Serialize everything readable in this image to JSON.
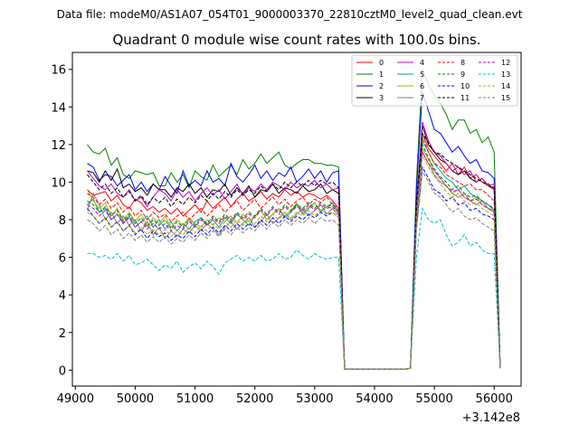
{
  "chart_data": {
    "type": "line",
    "suptitle": "Data file: modeM0/AS1A07_054T01_9000003370_22810cztM0_level2_quad_clean.evt",
    "title": "Quadrant 0 module wise count rates with 100.0s bins.",
    "xlabel": "",
    "ylabel": "",
    "x_offset_label": "+3.142e8",
    "xlim": [
      48950,
      56450
    ],
    "ylim": [
      -0.85,
      16.9
    ],
    "x_ticks": [
      49000,
      50000,
      51000,
      52000,
      53000,
      54000,
      55000,
      56000
    ],
    "y_ticks": [
      0,
      2,
      4,
      6,
      8,
      10,
      12,
      14,
      16
    ],
    "x_segments": [
      {
        "start": 49200,
        "end": 53500,
        "step": 100
      },
      {
        "start": 54600,
        "end": 56100,
        "step": 100
      }
    ],
    "series": [
      {
        "name": "0",
        "color": "#ff0000",
        "dash": "solid",
        "seg1": [
          9.6,
          9.3,
          9.4,
          9.5,
          9.0,
          9.3,
          8.8,
          8.6,
          9.1,
          8.9,
          8.5,
          8.7,
          8.4,
          8.6,
          8.3,
          8.6,
          8.2,
          8.5,
          8.8,
          8.4,
          9.0,
          8.6,
          8.9,
          9.2,
          8.7,
          9.1,
          9.4,
          9.0,
          9.2,
          9.5,
          9.1,
          9.4,
          9.2,
          9.6,
          9.3,
          9.5,
          9.2,
          9.4,
          9.3,
          9.1,
          9.3,
          9.0,
          8.6,
          0.05
        ],
        "seg2": [
          0.1,
          8.2,
          12.6,
          11.8,
          11.4,
          11.0,
          10.6,
          11.0,
          10.4,
          10.8,
          10.2,
          10.4,
          10.0,
          9.8,
          9.6,
          0.1
        ]
      },
      {
        "name": "1",
        "color": "#008000",
        "dash": "solid",
        "seg1": [
          12.0,
          11.6,
          11.5,
          11.8,
          10.9,
          11.3,
          10.4,
          10.2,
          10.6,
          10.5,
          10.4,
          10.5,
          9.8,
          9.8,
          10.5,
          10.0,
          10.4,
          9.7,
          10.6,
          10.3,
          10.1,
          10.9,
          10.3,
          10.6,
          10.9,
          10.4,
          11.2,
          10.7,
          11.0,
          11.5,
          11.0,
          11.3,
          11.6,
          10.9,
          10.7,
          11.0,
          11.2,
          11.2,
          11.0,
          11.0,
          10.9,
          10.9,
          10.8,
          0.05
        ],
        "seg2": [
          0.1,
          10.0,
          16.0,
          15.2,
          14.6,
          14.2,
          13.6,
          12.8,
          13.3,
          13.3,
          12.6,
          12.8,
          12.1,
          12.4,
          11.6,
          0.2
        ]
      },
      {
        "name": "2",
        "color": "#0000ff",
        "dash": "solid",
        "seg1": [
          11.0,
          10.8,
          10.1,
          10.4,
          10.3,
          9.8,
          10.1,
          10.4,
          9.6,
          10.0,
          9.5,
          9.9,
          9.6,
          10.3,
          9.8,
          9.4,
          10.6,
          9.8,
          10.1,
          9.8,
          10.6,
          10.0,
          10.2,
          9.8,
          11.0,
          10.3,
          10.0,
          10.4,
          10.9,
          10.2,
          10.6,
          10.1,
          10.5,
          10.3,
          10.8,
          10.0,
          10.3,
          10.7,
          10.2,
          10.6,
          10.0,
          10.5,
          10.6,
          0.05
        ],
        "seg2": [
          0.1,
          9.6,
          14.8,
          13.8,
          12.8,
          12.6,
          12.1,
          11.6,
          11.9,
          11.4,
          11.0,
          11.2,
          10.6,
          10.5,
          10.2,
          0.1
        ]
      },
      {
        "name": "3",
        "color": "#000000",
        "dash": "solid",
        "seg1": [
          10.6,
          10.5,
          10.0,
          10.6,
          10.1,
          10.7,
          9.7,
          9.9,
          9.5,
          9.7,
          9.3,
          9.9,
          9.6,
          9.6,
          9.2,
          9.7,
          9.5,
          9.9,
          9.4,
          9.7,
          9.2,
          9.6,
          9.5,
          9.9,
          9.3,
          9.7,
          9.4,
          9.8,
          9.2,
          9.6,
          9.5,
          9.9,
          9.4,
          9.7,
          9.6,
          9.4,
          9.8,
          9.5,
          9.6,
          9.9,
          9.4,
          9.6,
          9.4,
          0.05
        ],
        "seg2": [
          0.1,
          8.5,
          13.0,
          12.0,
          11.6,
          11.2,
          11.0,
          10.6,
          10.4,
          10.6,
          10.2,
          10.0,
          10.2,
          9.8,
          9.7,
          0.1
        ]
      },
      {
        "name": "4",
        "color": "#c000c0",
        "dash": "solid",
        "seg1": [
          10.6,
          10.2,
          9.8,
          9.6,
          9.9,
          9.4,
          9.2,
          9.6,
          9.0,
          9.2,
          8.7,
          9.2,
          9.6,
          9.4,
          9.0,
          9.6,
          9.2,
          9.5,
          9.0,
          9.4,
          9.7,
          9.3,
          9.6,
          9.1,
          9.5,
          9.9,
          9.3,
          9.7,
          9.5,
          9.9,
          9.6,
          10.0,
          9.8,
          9.6,
          10.0,
          9.7,
          9.9,
          9.8,
          10.1,
          9.7,
          9.9,
          9.6,
          9.7,
          0.05
        ],
        "seg2": [
          0.1,
          8.8,
          13.2,
          12.2,
          11.6,
          11.4,
          11.0,
          10.6,
          10.8,
          10.4,
          10.6,
          10.0,
          10.2,
          9.8,
          9.9,
          0.1
        ]
      },
      {
        "name": "5",
        "color": "#00a0a0",
        "dash": "solid",
        "seg1": [
          8.8,
          9.1,
          8.4,
          8.6,
          8.0,
          8.3,
          7.8,
          8.2,
          7.6,
          7.9,
          8.2,
          7.6,
          8.0,
          7.5,
          7.9,
          7.4,
          7.8,
          7.5,
          7.9,
          8.1,
          7.7,
          8.0,
          7.6,
          8.1,
          7.8,
          8.3,
          8.0,
          7.7,
          8.2,
          8.5,
          8.0,
          8.3,
          8.6,
          8.1,
          8.4,
          8.8,
          8.3,
          8.6,
          8.9,
          8.4,
          8.7,
          8.9,
          8.3,
          0.05
        ],
        "seg2": [
          0.1,
          8.4,
          12.2,
          11.6,
          11.0,
          10.6,
          10.2,
          10.0,
          9.6,
          9.8,
          9.4,
          9.2,
          9.0,
          8.8,
          8.5,
          0.1
        ]
      },
      {
        "name": "6",
        "color": "#b0b000",
        "dash": "solid",
        "seg1": [
          9.6,
          9.0,
          8.6,
          8.9,
          8.2,
          8.6,
          8.0,
          8.4,
          7.9,
          8.3,
          7.7,
          8.1,
          7.8,
          8.2,
          7.6,
          8.0,
          7.7,
          8.1,
          7.8,
          7.6,
          8.0,
          7.7,
          8.1,
          7.9,
          8.2,
          7.8,
          8.3,
          7.9,
          8.2,
          8.5,
          8.0,
          8.3,
          8.6,
          8.2,
          8.5,
          8.9,
          8.4,
          8.7,
          8.9,
          8.5,
          8.7,
          8.6,
          8.4,
          0.05
        ],
        "seg2": [
          0.1,
          8.2,
          11.8,
          11.2,
          10.6,
          10.2,
          9.8,
          9.4,
          9.6,
          9.2,
          9.0,
          9.2,
          8.8,
          8.6,
          8.5,
          0.1
        ]
      },
      {
        "name": "7",
        "color": "#808080",
        "dash": "solid",
        "seg1": [
          8.5,
          9.4,
          8.8,
          8.0,
          8.4,
          7.8,
          8.2,
          7.7,
          8.0,
          7.4,
          7.9,
          7.2,
          7.6,
          7.0,
          7.4,
          7.1,
          7.5,
          7.3,
          7.7,
          7.4,
          7.8,
          7.5,
          7.2,
          7.6,
          7.9,
          7.5,
          7.8,
          8.1,
          7.6,
          7.9,
          8.3,
          7.8,
          8.1,
          8.4,
          8.0,
          8.3,
          8.6,
          8.2,
          8.5,
          8.8,
          8.3,
          8.6,
          8.2,
          0.05
        ],
        "seg2": [
          0.1,
          8.0,
          11.6,
          11.0,
          10.4,
          10.0,
          9.8,
          9.4,
          9.2,
          9.4,
          9.0,
          8.8,
          9.0,
          8.6,
          8.4,
          0.1
        ]
      },
      {
        "name": "8",
        "color": "#ff0000",
        "dash": "dashed",
        "seg1": [
          9.4,
          9.2,
          8.8,
          9.1,
          8.6,
          8.9,
          8.4,
          8.7,
          8.2,
          8.5,
          8.0,
          8.4,
          8.1,
          8.3,
          7.9,
          8.2,
          8.4,
          8.0,
          8.3,
          8.6,
          8.2,
          8.5,
          8.8,
          8.4,
          8.7,
          9.0,
          8.5,
          8.8,
          9.1,
          8.6,
          8.9,
          9.2,
          8.8,
          9.1,
          8.7,
          9.0,
          9.2,
          8.8,
          9.1,
          8.9,
          9.2,
          8.8,
          8.6,
          0.05
        ],
        "seg2": [
          0.1,
          8.3,
          12.4,
          11.6,
          11.0,
          10.8,
          10.4,
          10.2,
          10.0,
          9.8,
          9.9,
          9.6,
          9.6,
          9.3,
          9.0,
          0.1
        ]
      },
      {
        "name": "9",
        "color": "#008000",
        "dash": "dashed",
        "seg1": [
          9.0,
          8.8,
          8.4,
          8.7,
          8.2,
          8.5,
          7.9,
          8.3,
          7.8,
          8.1,
          7.6,
          8.0,
          7.7,
          8.0,
          7.5,
          7.9,
          7.6,
          8.0,
          7.7,
          8.1,
          7.8,
          8.2,
          7.9,
          8.3,
          8.0,
          8.4,
          8.1,
          8.4,
          8.2,
          8.6,
          8.3,
          8.7,
          8.4,
          8.8,
          8.5,
          8.8,
          8.6,
          8.9,
          8.6,
          8.9,
          8.7,
          8.8,
          8.5,
          0.05
        ],
        "seg2": [
          0.1,
          8.1,
          12.0,
          11.3,
          10.7,
          10.3,
          10.0,
          9.6,
          9.8,
          9.4,
          9.2,
          9.3,
          9.0,
          8.8,
          8.6,
          0.1
        ]
      },
      {
        "name": "10",
        "color": "#0000ff",
        "dash": "dashed",
        "seg1": [
          8.6,
          8.2,
          7.8,
          8.1,
          7.6,
          7.9,
          7.4,
          7.7,
          7.2,
          7.5,
          7.0,
          7.4,
          7.1,
          7.3,
          6.9,
          7.2,
          7.0,
          7.4,
          7.1,
          7.5,
          7.2,
          7.6,
          7.3,
          7.7,
          7.4,
          7.8,
          7.5,
          7.8,
          7.6,
          8.0,
          7.7,
          8.1,
          7.8,
          8.2,
          7.9,
          8.2,
          8.0,
          8.3,
          8.1,
          8.4,
          8.2,
          8.4,
          8.1,
          0.05
        ],
        "seg2": [
          0.1,
          7.6,
          10.8,
          10.2,
          9.6,
          9.4,
          9.0,
          9.2,
          8.8,
          8.9,
          8.5,
          8.6,
          8.3,
          8.2,
          8.0,
          0.1
        ]
      },
      {
        "name": "11",
        "color": "#000000",
        "dash": "dashed",
        "seg1": [
          10.4,
          10.0,
          9.6,
          9.9,
          9.4,
          9.7,
          9.2,
          9.5,
          9.0,
          9.3,
          8.8,
          9.2,
          8.9,
          9.2,
          8.7,
          9.1,
          8.8,
          9.2,
          8.9,
          9.3,
          9.0,
          9.4,
          9.1,
          9.5,
          9.2,
          9.6,
          9.3,
          9.6,
          9.4,
          9.8,
          9.5,
          9.9,
          9.6,
          10.0,
          9.7,
          10.0,
          9.8,
          10.1,
          9.8,
          10.1,
          9.9,
          10.0,
          9.7,
          0.05
        ],
        "seg2": [
          0.1,
          8.9,
          12.6,
          12.1,
          11.6,
          11.5,
          11.2,
          11.0,
          10.8,
          10.6,
          10.4,
          10.2,
          10.0,
          9.9,
          9.7,
          0.1
        ]
      },
      {
        "name": "12",
        "color": "#c000c0",
        "dash": "dashed",
        "seg1": [
          8.8,
          8.6,
          8.2,
          8.5,
          8.0,
          8.3,
          7.8,
          8.1,
          7.6,
          7.9,
          7.5,
          7.8,
          7.5,
          7.8,
          7.4,
          7.7,
          7.5,
          7.9,
          7.6,
          8.0,
          7.7,
          8.1,
          7.8,
          8.2,
          7.9,
          8.3,
          8.0,
          8.3,
          8.1,
          8.5,
          8.2,
          8.6,
          8.3,
          8.7,
          8.4,
          8.7,
          8.5,
          8.8,
          8.5,
          8.8,
          8.6,
          8.7,
          8.4,
          0.05
        ],
        "seg2": [
          0.1,
          8.0,
          11.6,
          11.0,
          10.6,
          10.2,
          9.8,
          9.5,
          9.6,
          9.2,
          9.0,
          9.1,
          8.8,
          8.6,
          8.4,
          0.1
        ]
      },
      {
        "name": "13",
        "color": "#00c0c0",
        "dash": "dashed",
        "seg1": [
          6.2,
          6.2,
          6.0,
          6.1,
          5.9,
          6.2,
          5.8,
          6.1,
          5.6,
          5.7,
          5.9,
          5.6,
          5.3,
          5.6,
          5.4,
          5.8,
          5.2,
          5.5,
          5.7,
          5.4,
          5.8,
          5.5,
          5.1,
          5.7,
          5.9,
          6.1,
          5.8,
          6.0,
          5.8,
          6.1,
          5.8,
          5.9,
          6.2,
          5.9,
          6.0,
          6.4,
          6.1,
          5.9,
          6.2,
          6.0,
          5.9,
          6.0,
          6.0,
          0.05
        ],
        "seg2": [
          0.1,
          6.0,
          8.6,
          8.0,
          7.8,
          8.0,
          7.2,
          6.6,
          6.8,
          7.2,
          6.6,
          6.8,
          6.4,
          6.2,
          6.2,
          0.1
        ]
      },
      {
        "name": "14",
        "color": "#b0b000",
        "dash": "dashed",
        "seg1": [
          8.4,
          8.2,
          7.8,
          8.1,
          7.6,
          7.9,
          7.4,
          7.7,
          7.3,
          7.6,
          7.2,
          7.5,
          7.2,
          7.5,
          7.1,
          7.4,
          7.2,
          7.6,
          7.3,
          7.7,
          7.4,
          7.8,
          7.5,
          7.9,
          7.6,
          8.0,
          7.7,
          8.0,
          7.8,
          8.2,
          7.9,
          8.3,
          8.0,
          8.4,
          8.1,
          8.4,
          8.2,
          8.5,
          8.2,
          8.5,
          8.3,
          8.4,
          8.1,
          0.05
        ],
        "seg2": [
          0.1,
          7.9,
          11.4,
          10.8,
          10.3,
          9.9,
          9.5,
          9.2,
          9.4,
          9.0,
          8.8,
          8.9,
          8.6,
          8.4,
          8.2,
          0.1
        ]
      },
      {
        "name": "15",
        "color": "#808080",
        "dash": "dashed",
        "seg1": [
          8.0,
          7.8,
          7.4,
          7.7,
          7.2,
          7.5,
          7.0,
          7.3,
          6.9,
          7.2,
          6.8,
          7.1,
          6.8,
          7.1,
          6.7,
          7.0,
          6.8,
          7.2,
          6.9,
          7.3,
          7.0,
          7.4,
          7.1,
          7.5,
          7.2,
          7.6,
          7.3,
          7.6,
          7.4,
          7.8,
          7.5,
          7.9,
          7.6,
          8.0,
          7.7,
          8.0,
          7.8,
          8.1,
          7.8,
          8.1,
          7.9,
          8.0,
          7.7,
          0.05
        ],
        "seg2": [
          0.1,
          7.4,
          10.6,
          10.0,
          9.4,
          9.2,
          8.8,
          8.4,
          8.6,
          8.2,
          8.0,
          8.1,
          7.8,
          7.6,
          7.4,
          0.1
        ]
      }
    ]
  }
}
